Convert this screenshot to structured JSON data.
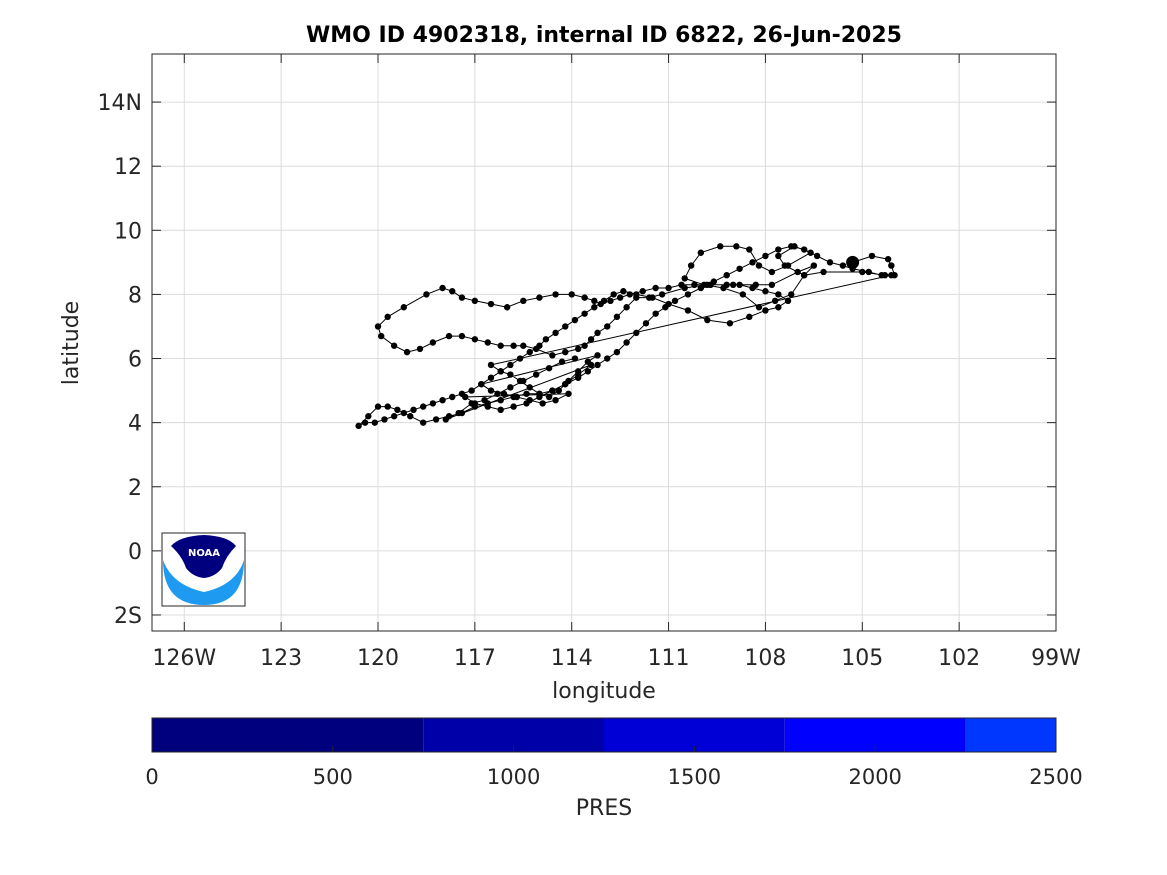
{
  "chart_data": {
    "type": "scatter",
    "title": "WMO ID 4902318, internal ID 6822, 26-Jun-2025",
    "xlabel": "longitude",
    "ylabel": "latitude",
    "xlim": [
      -127,
      -99
    ],
    "ylim": [
      -2.5,
      15.5
    ],
    "xticks": [
      -126,
      -123,
      -120,
      -117,
      -114,
      -111,
      -108,
      -105,
      -102,
      -99
    ],
    "xtick_labels": [
      "126W",
      "123",
      "120",
      "117",
      "114",
      "111",
      "108",
      "105",
      "102",
      "99W"
    ],
    "yticks": [
      -2,
      0,
      2,
      4,
      6,
      8,
      10,
      12,
      14
    ],
    "ytick_labels": [
      "2S",
      "0",
      "2",
      "4",
      "6",
      "8",
      "10",
      "12",
      "14N"
    ],
    "grid": true,
    "marker_color": "#000000",
    "line_color": "#000000",
    "latest_position": {
      "x": -105.3,
      "y": 9.0
    },
    "trajectory": {
      "x": [
        -105.3,
        -104.7,
        -104.2,
        -104.1,
        -104.0,
        -104.3,
        -105.0,
        -106.2,
        -106.8,
        -107.4,
        -107.6,
        -107.1,
        -106.6,
        -107.3,
        -107.8,
        -108.2,
        -108.5,
        -108.9,
        -109.4,
        -110.0,
        -110.3,
        -110.5,
        -109.9,
        -109.3,
        -108.7,
        -108.2,
        -107.7,
        -107.2,
        -106.8,
        -106.5,
        -107.0,
        -107.8,
        -108.3,
        -109.0,
        -109.8,
        -110.5,
        -111.2,
        -111.6,
        -112.0,
        -112.3,
        -112.6,
        -112.9,
        -113.2,
        -113.4,
        -113.6,
        -113.8,
        -114.2,
        -114.6,
        -115.1,
        -115.5,
        -115.8,
        -116.2,
        -116.6,
        -117.0,
        -117.4,
        -117.8,
        -118.3,
        -118.7,
        -119.1,
        -119.5,
        -119.9,
        -120.0,
        -119.7,
        -119.2,
        -118.5,
        -118.0,
        -117.7,
        -117.4,
        -117.0,
        -116.5,
        -116.0,
        -115.5,
        -115.0,
        -114.5,
        -114.0,
        -113.6,
        -113.3,
        -113.1,
        -112.8,
        -112.5,
        -112.2,
        -111.8,
        -111.4,
        -111.0,
        -110.6,
        -110.2,
        -109.7,
        -109.2,
        -108.8,
        -108.4,
        -108.0,
        -107.6,
        -107.3,
        -107.6,
        -108.0,
        -108.5,
        -109.1,
        -109.8,
        -110.4,
        -111.0,
        -111.5,
        -112.0,
        -112.4,
        -112.7,
        -113.0,
        -113.3,
        -113.6,
        -113.9,
        -114.2,
        -114.5,
        -114.8,
        -115.0,
        -115.3,
        -115.6,
        -115.9,
        -116.2,
        -116.5,
        -116.8,
        -117.1,
        -117.4,
        -117.7,
        -118.0,
        -118.3,
        -118.6,
        -118.9,
        -119.2,
        -119.5,
        -119.8,
        -120.1,
        -120.4,
        -120.6,
        -120.3,
        -120.0,
        -119.7,
        -119.4,
        -119.0,
        -118.6,
        -118.2,
        -117.8,
        -117.4,
        -117.0,
        -116.6,
        -116.2,
        -115.8,
        -115.4,
        -115.0,
        -114.6,
        -114.2,
        -113.8,
        -113.5,
        -113.2,
        -112.9,
        -112.6,
        -112.3,
        -112.0,
        -111.7,
        -111.4,
        -111.1,
        -110.8,
        -110.4,
        -110.0,
        -109.6,
        -109.2,
        -108.8,
        -108.4,
        -108.0,
        -107.6,
        -107.2,
        -106.8,
        -106.4,
        -106.0,
        -105.6,
        -105.3,
        -104.8,
        -104.4,
        -104.1,
        -116.5,
        -116.2,
        -115.9,
        -115.6,
        -115.3,
        -115.0,
        -114.7,
        -114.4,
        -114.1,
        -113.8,
        -113.5,
        -113.2,
        -116.8,
        -116.5,
        -116.1,
        -115.7,
        -115.3,
        -114.9,
        -114.5,
        -114.1,
        -117.3,
        -117.0,
        -116.6,
        -116.2,
        -115.8,
        -115.4,
        -115.0,
        -114.6,
        -114.2,
        -113.8,
        -113.4,
        -117.9,
        -117.5,
        -117.1,
        -116.7,
        -116.3,
        -115.9,
        -115.5,
        -115.1,
        -114.7,
        -114.3,
        -113.9
      ],
      "y": [
        9.0,
        9.2,
        9.1,
        8.9,
        8.6,
        8.6,
        8.7,
        8.7,
        8.6,
        8.9,
        9.2,
        9.5,
        9.3,
        8.9,
        8.7,
        8.9,
        9.4,
        9.5,
        9.5,
        9.3,
        8.9,
        8.5,
        8.3,
        8.2,
        8.0,
        7.6,
        7.8,
        8.0,
        8.6,
        8.9,
        8.7,
        8.3,
        8.3,
        8.3,
        8.3,
        8.2,
        8.0,
        7.9,
        7.9,
        7.6,
        7.3,
        7.0,
        6.8,
        6.6,
        6.4,
        6.3,
        6.2,
        6.1,
        6.3,
        6.4,
        6.4,
        6.4,
        6.5,
        6.6,
        6.7,
        6.7,
        6.5,
        6.3,
        6.2,
        6.4,
        6.7,
        7.0,
        7.3,
        7.6,
        8.0,
        8.2,
        8.1,
        7.9,
        7.8,
        7.7,
        7.6,
        7.8,
        7.9,
        8.0,
        8.0,
        7.9,
        7.8,
        7.7,
        7.8,
        7.9,
        8.0,
        8.1,
        8.2,
        8.2,
        8.3,
        8.3,
        8.3,
        8.3,
        8.3,
        8.2,
        8.1,
        8.0,
        7.8,
        7.6,
        7.5,
        7.3,
        7.1,
        7.2,
        7.5,
        7.7,
        7.9,
        8.0,
        8.1,
        8.0,
        7.8,
        7.6,
        7.4,
        7.2,
        7.0,
        6.8,
        6.6,
        6.4,
        6.2,
        6.0,
        5.8,
        5.6,
        5.4,
        5.2,
        5.0,
        4.9,
        4.8,
        4.7,
        4.6,
        4.5,
        4.4,
        4.3,
        4.2,
        4.1,
        4.0,
        4.0,
        3.9,
        4.2,
        4.5,
        4.5,
        4.4,
        4.2,
        4.0,
        4.1,
        4.2,
        4.3,
        4.5,
        4.6,
        4.7,
        4.8,
        4.9,
        4.9,
        5.0,
        5.2,
        5.4,
        5.6,
        5.8,
        6.0,
        6.2,
        6.5,
        6.8,
        7.1,
        7.4,
        7.6,
        7.8,
        8.0,
        8.2,
        8.4,
        8.6,
        8.8,
        9.0,
        9.2,
        9.4,
        9.5,
        9.4,
        9.2,
        9.0,
        8.9,
        8.8,
        8.7,
        8.6,
        8.6,
        5.8,
        5.6,
        5.5,
        5.3,
        5.1,
        4.9,
        4.8,
        5.0,
        5.3,
        5.6,
        5.9,
        6.1,
        5.2,
        5.0,
        4.9,
        4.8,
        4.7,
        4.6,
        4.7,
        4.9,
        4.8,
        4.6,
        4.5,
        4.4,
        4.5,
        4.6,
        4.8,
        5.0,
        5.2,
        5.5,
        5.8,
        4.1,
        4.3,
        4.6,
        4.7,
        4.9,
        5.1,
        5.3,
        5.5,
        5.7,
        5.9,
        6.0
      ]
    }
  },
  "colorbar": {
    "label": "PRES",
    "min": 0,
    "max": 2500,
    "ticks": [
      0,
      500,
      1000,
      1500,
      2000,
      2500
    ],
    "tick_labels": [
      "0",
      "500",
      "1000",
      "1500",
      "2000",
      "2500"
    ],
    "bands": [
      {
        "from": 0,
        "to": 750,
        "color": "#00007f"
      },
      {
        "from": 750,
        "to": 1250,
        "color": "#0000a8"
      },
      {
        "from": 1250,
        "to": 1750,
        "color": "#0000d6"
      },
      {
        "from": 1750,
        "to": 2250,
        "color": "#0000ff"
      },
      {
        "from": 2250,
        "to": 2500,
        "color": "#0037ff"
      }
    ]
  },
  "logo": {
    "text": "NOAA",
    "dark_color": "#00007f",
    "light_color": "#1e9bf0"
  }
}
